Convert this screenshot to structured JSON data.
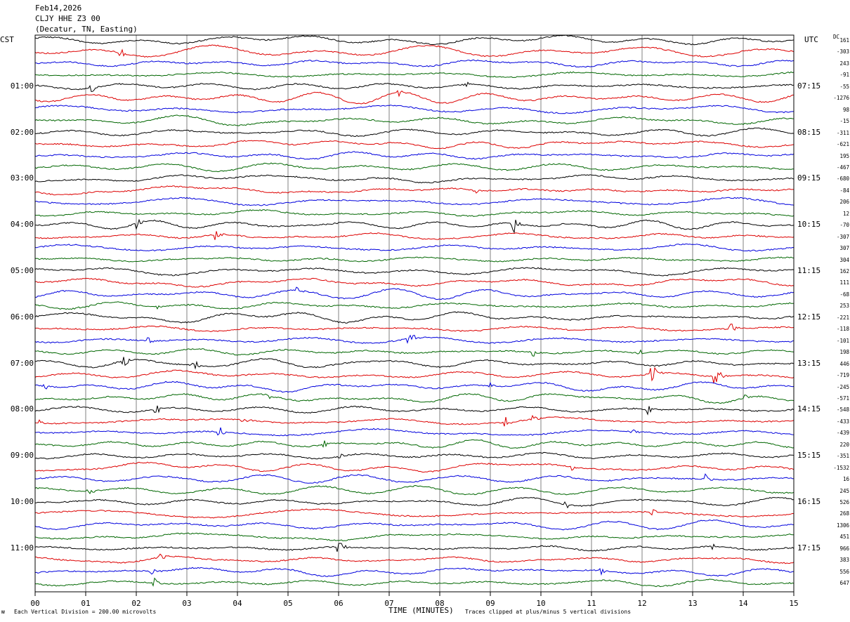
{
  "header": {
    "date": "Feb14,2026",
    "station": "CLJY HHE Z3 00",
    "location": "(Decatur, TN, Easting)"
  },
  "left_tz": "CST",
  "right_tz": "UTC",
  "dc_header": "DC",
  "footer": {
    "scale": "Each Vertical Division =  200.00 microvolts",
    "clip": "Traces clipped at plus/minus 5 vertical divisions",
    "corner_mark": "ᴍ"
  },
  "colors": {
    "trace_cycle": [
      "#000000",
      "#dd0000",
      "#0000dd",
      "#006600"
    ],
    "grid": "#808080"
  },
  "chart_data": {
    "type": "line",
    "title": "",
    "xlabel": "TIME (MINUTES)",
    "xlim": [
      0,
      15
    ],
    "x_tick_labels": [
      "00",
      "01",
      "02",
      "03",
      "04",
      "05",
      "06",
      "07",
      "08",
      "09",
      "10",
      "11",
      "12",
      "13",
      "14",
      "15"
    ],
    "row_count": 48,
    "left_time_labels": [
      "01:00",
      "02:00",
      "03:00",
      "04:00",
      "05:00",
      "06:00",
      "07:00",
      "08:00",
      "09:00",
      "10:00",
      "11:00"
    ],
    "right_time_labels": [
      "07:15",
      "08:15",
      "09:15",
      "10:15",
      "11:15",
      "12:15",
      "13:15",
      "14:15",
      "15:15",
      "16:15",
      "17:15"
    ],
    "hour_label_every_rows": 4,
    "dc_offsets": [
      161,
      -303,
      243,
      -91,
      -55,
      -1276,
      98,
      -15,
      -311,
      -621,
      195,
      -467,
      -680,
      -84,
      206,
      12,
      -70,
      -307,
      307,
      304,
      162,
      111,
      -68,
      253,
      -221,
      -118,
      -101,
      198,
      446,
      -719,
      -245,
      -571,
      -548,
      -433,
      -439,
      220,
      -351,
      -1532,
      16,
      245,
      526,
      268,
      1306,
      451,
      966,
      383,
      556,
      647
    ],
    "events": [
      {
        "row": 1,
        "minute": 1.7,
        "amp": 3
      },
      {
        "row": 4,
        "minute": 1.1,
        "amp": 4
      },
      {
        "row": 4,
        "minute": 8.5,
        "amp": 3
      },
      {
        "row": 5,
        "minute": 7.2,
        "amp": 3
      },
      {
        "row": 13,
        "minute": 8.7,
        "amp": 3
      },
      {
        "row": 16,
        "minute": 2.0,
        "amp": 4
      },
      {
        "row": 16,
        "minute": 9.45,
        "amp": 8
      },
      {
        "row": 17,
        "minute": 3.55,
        "amp": 4
      },
      {
        "row": 22,
        "minute": 5.2,
        "amp": 3
      },
      {
        "row": 23,
        "minute": 0.85,
        "amp": 3
      },
      {
        "row": 23,
        "minute": 2.4,
        "amp": 3
      },
      {
        "row": 25,
        "minute": 13.75,
        "amp": 4
      },
      {
        "row": 26,
        "minute": 2.25,
        "amp": 3
      },
      {
        "row": 26,
        "minute": 7.4,
        "amp": 6
      },
      {
        "row": 27,
        "minute": 9.85,
        "amp": 3
      },
      {
        "row": 27,
        "minute": 11.95,
        "amp": 3
      },
      {
        "row": 28,
        "minute": 1.75,
        "amp": 5
      },
      {
        "row": 28,
        "minute": 3.15,
        "amp": 4
      },
      {
        "row": 29,
        "minute": 12.2,
        "amp": 7
      },
      {
        "row": 29,
        "minute": 13.45,
        "amp": 9
      },
      {
        "row": 30,
        "minute": 0.2,
        "amp": 3
      },
      {
        "row": 30,
        "minute": 9.0,
        "amp": 3
      },
      {
        "row": 31,
        "minute": 4.65,
        "amp": 3
      },
      {
        "row": 31,
        "minute": 14.05,
        "amp": 3
      },
      {
        "row": 32,
        "minute": 2.4,
        "amp": 3
      },
      {
        "row": 32,
        "minute": 12.1,
        "amp": 4
      },
      {
        "row": 33,
        "minute": 0.1,
        "amp": 3
      },
      {
        "row": 33,
        "minute": 4.1,
        "amp": 3
      },
      {
        "row": 33,
        "minute": 9.3,
        "amp": 4
      },
      {
        "row": 33,
        "minute": 9.85,
        "amp": 4
      },
      {
        "row": 34,
        "minute": 3.65,
        "amp": 4
      },
      {
        "row": 34,
        "minute": 11.8,
        "amp": 3
      },
      {
        "row": 35,
        "minute": 5.7,
        "amp": 3
      },
      {
        "row": 36,
        "minute": 6.0,
        "amp": 3
      },
      {
        "row": 37,
        "minute": 10.6,
        "amp": 3
      },
      {
        "row": 38,
        "minute": 13.25,
        "amp": 3
      },
      {
        "row": 39,
        "minute": 1.05,
        "amp": 4
      },
      {
        "row": 40,
        "minute": 10.5,
        "amp": 3
      },
      {
        "row": 41,
        "minute": 12.2,
        "amp": 3
      },
      {
        "row": 44,
        "minute": 6.0,
        "amp": 5
      },
      {
        "row": 44,
        "minute": 13.4,
        "amp": 3
      },
      {
        "row": 45,
        "minute": 2.45,
        "amp": 4
      },
      {
        "row": 46,
        "minute": 2.3,
        "amp": 3
      },
      {
        "row": 46,
        "minute": 11.2,
        "amp": 3
      },
      {
        "row": 47,
        "minute": 2.35,
        "amp": 3
      }
    ]
  }
}
